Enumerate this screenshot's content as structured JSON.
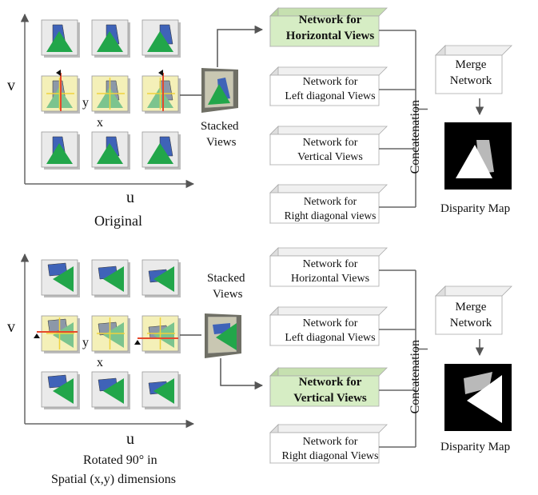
{
  "top": {
    "axis_v": "v",
    "axis_u": "u",
    "axis_y": "y",
    "axis_x": "x",
    "caption": "Original",
    "stacked": [
      "Stacked",
      "Views"
    ],
    "networks": [
      {
        "line1": "Network for",
        "line2": "Horizontal Views",
        "highlight": true
      },
      {
        "line1": "Network for",
        "line2": "Left diagonal Views",
        "highlight": false
      },
      {
        "line1": "Network for",
        "line2": "Vertical Views",
        "highlight": false
      },
      {
        "line1": "Network for",
        "line2": "Right diagonal views",
        "highlight": false
      }
    ],
    "concat": "Concatenation",
    "merge": [
      "Merge",
      "Network"
    ],
    "output": "Disparity Map"
  },
  "bottom": {
    "axis_v": "v",
    "axis_u": "u",
    "axis_y": "y",
    "axis_x": "x",
    "caption": [
      "Rotated 90° in",
      "Spatial (x,y) dimensions"
    ],
    "stacked": [
      "Stacked",
      "Views"
    ],
    "networks": [
      {
        "line1": "Network for",
        "line2": "Horizontal Views",
        "highlight": false
      },
      {
        "line1": "Network for",
        "line2": "Left diagonal Views",
        "highlight": false
      },
      {
        "line1": "Network for",
        "line2": "Vertical Views",
        "highlight": true
      },
      {
        "line1": "Network for",
        "line2": "Right diagonal Views",
        "highlight": false
      }
    ],
    "concat": "Concatenation",
    "merge": [
      "Merge",
      "Network"
    ],
    "output": "Disparity Map"
  },
  "colors": {
    "green": "#22a64a",
    "blue": "#3f63b8",
    "highlight_box": "#d6edc4",
    "cell_bg": "#eaeaea",
    "center_row_bg": "#f4f0b8",
    "line_red": "#e5482c",
    "line_yellow": "#f0d23c"
  }
}
